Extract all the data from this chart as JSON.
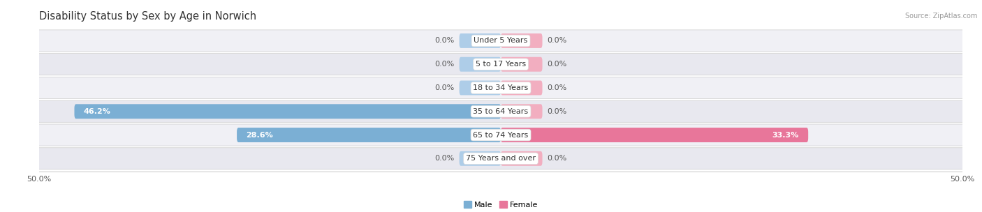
{
  "title": "Disability Status by Sex by Age in Norwich",
  "source": "Source: ZipAtlas.com",
  "categories": [
    "Under 5 Years",
    "5 to 17 Years",
    "18 to 34 Years",
    "35 to 64 Years",
    "65 to 74 Years",
    "75 Years and over"
  ],
  "male_values": [
    0.0,
    0.0,
    0.0,
    46.2,
    28.6,
    0.0
  ],
  "female_values": [
    0.0,
    0.0,
    0.0,
    0.0,
    33.3,
    0.0
  ],
  "stub_size": 4.5,
  "xlim": 50.0,
  "bar_height": 0.62,
  "male_color": "#7bafd4",
  "female_color": "#e8769a",
  "male_stub_color": "#aecde8",
  "female_stub_color": "#f2aec0",
  "row_color_odd": "#f0f0f5",
  "row_color_even": "#e8e8ef",
  "title_fontsize": 10.5,
  "value_fontsize": 8,
  "category_fontsize": 8,
  "axis_label_fontsize": 8
}
